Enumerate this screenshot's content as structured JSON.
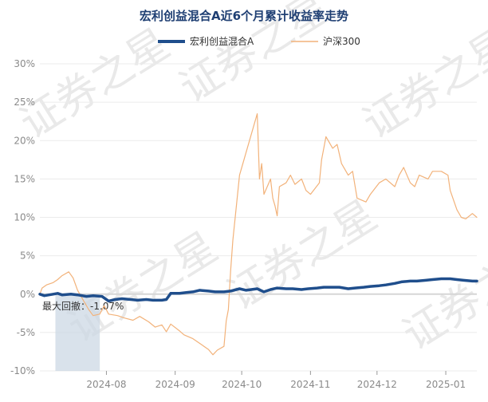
{
  "chart_data": {
    "type": "line",
    "title": "宏利创益混合A近6个月累计收益率走势",
    "watermark": "证券之星",
    "ylim": [
      -10,
      30
    ],
    "yticks": [
      30,
      25,
      20,
      15,
      10,
      5,
      0,
      -5,
      -10
    ],
    "ytick_labels": [
      "30%",
      "25%",
      "20%",
      "15%",
      "10%",
      "5%",
      "0%",
      "-5%",
      "-10%"
    ],
    "x_range": [
      "2024-07-02",
      "2025-01-15"
    ],
    "xticks": [
      {
        "date": "2024-08-01",
        "label": "2024-08"
      },
      {
        "date": "2024-09-01",
        "label": "2024-09"
      },
      {
        "date": "2024-10-01",
        "label": "2024-10"
      },
      {
        "date": "2024-11-01",
        "label": "2024-11"
      },
      {
        "date": "2024-12-01",
        "label": "2024-12"
      },
      {
        "date": "2025-01-01",
        "label": "2025-01"
      }
    ],
    "legend_position": "top-center",
    "grid": "horizontal",
    "max_drawdown": {
      "label": "最大回撤：-1.07%",
      "start": "2024-07-09",
      "end": "2024-07-29",
      "shade_color": "#c9d6e3"
    },
    "series": [
      {
        "name": "宏利创益混合A",
        "color": "#1f4e8c",
        "width": 3.5,
        "points": [
          [
            "2024-07-02",
            0.0
          ],
          [
            "2024-07-04",
            -0.2
          ],
          [
            "2024-07-08",
            0.0
          ],
          [
            "2024-07-10",
            0.1
          ],
          [
            "2024-07-12",
            -0.1
          ],
          [
            "2024-07-16",
            0.0
          ],
          [
            "2024-07-19",
            -0.1
          ],
          [
            "2024-07-23",
            -0.3
          ],
          [
            "2024-07-26",
            -0.2
          ],
          [
            "2024-07-30",
            -0.3
          ],
          [
            "2024-08-02",
            -0.9
          ],
          [
            "2024-08-05",
            -0.7
          ],
          [
            "2024-08-08",
            -0.6
          ],
          [
            "2024-08-12",
            -0.7
          ],
          [
            "2024-08-15",
            -0.8
          ],
          [
            "2024-08-19",
            -0.7
          ],
          [
            "2024-08-22",
            -0.8
          ],
          [
            "2024-08-26",
            -0.8
          ],
          [
            "2024-08-28",
            -0.7
          ],
          [
            "2024-08-30",
            0.1
          ],
          [
            "2024-09-03",
            0.1
          ],
          [
            "2024-09-06",
            0.2
          ],
          [
            "2024-09-09",
            0.3
          ],
          [
            "2024-09-12",
            0.5
          ],
          [
            "2024-09-16",
            0.4
          ],
          [
            "2024-09-19",
            0.3
          ],
          [
            "2024-09-23",
            0.3
          ],
          [
            "2024-09-26",
            0.4
          ],
          [
            "2024-09-30",
            0.7
          ],
          [
            "2024-10-03",
            0.5
          ],
          [
            "2024-10-08",
            0.7
          ],
          [
            "2024-10-11",
            0.3
          ],
          [
            "2024-10-14",
            0.6
          ],
          [
            "2024-10-17",
            0.8
          ],
          [
            "2024-10-21",
            0.7
          ],
          [
            "2024-10-24",
            0.7
          ],
          [
            "2024-10-28",
            0.6
          ],
          [
            "2024-10-31",
            0.7
          ],
          [
            "2024-11-04",
            0.8
          ],
          [
            "2024-11-07",
            0.9
          ],
          [
            "2024-11-11",
            0.9
          ],
          [
            "2024-11-14",
            0.9
          ],
          [
            "2024-11-18",
            0.7
          ],
          [
            "2024-11-21",
            0.8
          ],
          [
            "2024-11-25",
            0.9
          ],
          [
            "2024-11-28",
            1.0
          ],
          [
            "2024-12-02",
            1.1
          ],
          [
            "2024-12-05",
            1.2
          ],
          [
            "2024-12-09",
            1.4
          ],
          [
            "2024-12-12",
            1.6
          ],
          [
            "2024-12-16",
            1.7
          ],
          [
            "2024-12-19",
            1.7
          ],
          [
            "2024-12-23",
            1.8
          ],
          [
            "2024-12-26",
            1.9
          ],
          [
            "2024-12-30",
            2.0
          ],
          [
            "2025-01-03",
            2.0
          ],
          [
            "2025-01-06",
            1.9
          ],
          [
            "2025-01-09",
            1.8
          ],
          [
            "2025-01-13",
            1.7
          ],
          [
            "2025-01-15",
            1.7
          ]
        ]
      },
      {
        "name": "沪深300",
        "color": "#f2b27a",
        "width": 1.2,
        "points": [
          [
            "2024-07-02",
            0.0
          ],
          [
            "2024-07-03",
            0.8
          ],
          [
            "2024-07-05",
            1.2
          ],
          [
            "2024-07-08",
            1.5
          ],
          [
            "2024-07-10",
            1.9
          ],
          [
            "2024-07-12",
            2.4
          ],
          [
            "2024-07-15",
            2.9
          ],
          [
            "2024-07-17",
            2.1
          ],
          [
            "2024-07-19",
            0.5
          ],
          [
            "2024-07-22",
            -1.0
          ],
          [
            "2024-07-24",
            -2.0
          ],
          [
            "2024-07-26",
            -2.8
          ],
          [
            "2024-07-29",
            -2.6
          ],
          [
            "2024-07-31",
            -1.5
          ],
          [
            "2024-08-02",
            -2.6
          ],
          [
            "2024-08-06",
            -2.8
          ],
          [
            "2024-08-09",
            -3.1
          ],
          [
            "2024-08-13",
            -3.4
          ],
          [
            "2024-08-16",
            -2.9
          ],
          [
            "2024-08-20",
            -3.6
          ],
          [
            "2024-08-23",
            -4.3
          ],
          [
            "2024-08-26",
            -4.0
          ],
          [
            "2024-08-28",
            -4.9
          ],
          [
            "2024-08-30",
            -3.9
          ],
          [
            "2024-09-03",
            -4.8
          ],
          [
            "2024-09-05",
            -5.3
          ],
          [
            "2024-09-09",
            -5.8
          ],
          [
            "2024-09-12",
            -6.4
          ],
          [
            "2024-09-16",
            -7.2
          ],
          [
            "2024-09-18",
            -7.9
          ],
          [
            "2024-09-20",
            -7.3
          ],
          [
            "2024-09-23",
            -6.8
          ],
          [
            "2024-09-24",
            -3.5
          ],
          [
            "2024-09-25",
            -2.0
          ],
          [
            "2024-09-26",
            3.0
          ],
          [
            "2024-09-27",
            7.0
          ],
          [
            "2024-09-30",
            15.5
          ],
          [
            "2024-10-08",
            23.5
          ],
          [
            "2024-10-09",
            15.0
          ],
          [
            "2024-10-10",
            17.0
          ],
          [
            "2024-10-11",
            13.0
          ],
          [
            "2024-10-14",
            15.0
          ],
          [
            "2024-10-15",
            12.5
          ],
          [
            "2024-10-16",
            11.5
          ],
          [
            "2024-10-17",
            10.2
          ],
          [
            "2024-10-18",
            14.0
          ],
          [
            "2024-10-21",
            14.5
          ],
          [
            "2024-10-23",
            15.5
          ],
          [
            "2024-10-25",
            14.3
          ],
          [
            "2024-10-28",
            15.0
          ],
          [
            "2024-10-30",
            13.5
          ],
          [
            "2024-11-01",
            13.0
          ],
          [
            "2024-11-05",
            14.5
          ],
          [
            "2024-11-06",
            17.5
          ],
          [
            "2024-11-08",
            20.5
          ],
          [
            "2024-11-11",
            19.0
          ],
          [
            "2024-11-13",
            19.5
          ],
          [
            "2024-11-15",
            17.0
          ],
          [
            "2024-11-18",
            15.5
          ],
          [
            "2024-11-20",
            16.0
          ],
          [
            "2024-11-22",
            12.5
          ],
          [
            "2024-11-26",
            12.0
          ],
          [
            "2024-11-28",
            13.0
          ],
          [
            "2024-12-02",
            14.5
          ],
          [
            "2024-12-05",
            15.0
          ],
          [
            "2024-12-09",
            14.0
          ],
          [
            "2024-12-11",
            15.5
          ],
          [
            "2024-12-13",
            16.5
          ],
          [
            "2024-12-16",
            14.5
          ],
          [
            "2024-12-18",
            14.0
          ],
          [
            "2024-12-20",
            15.5
          ],
          [
            "2024-12-24",
            15.0
          ],
          [
            "2024-12-26",
            16.0
          ],
          [
            "2024-12-30",
            16.0
          ],
          [
            "2025-01-02",
            15.5
          ],
          [
            "2025-01-03",
            13.5
          ],
          [
            "2025-01-06",
            11.0
          ],
          [
            "2025-01-08",
            10.0
          ],
          [
            "2025-01-10",
            9.8
          ],
          [
            "2025-01-13",
            10.5
          ],
          [
            "2025-01-15",
            10.0
          ]
        ]
      }
    ]
  }
}
